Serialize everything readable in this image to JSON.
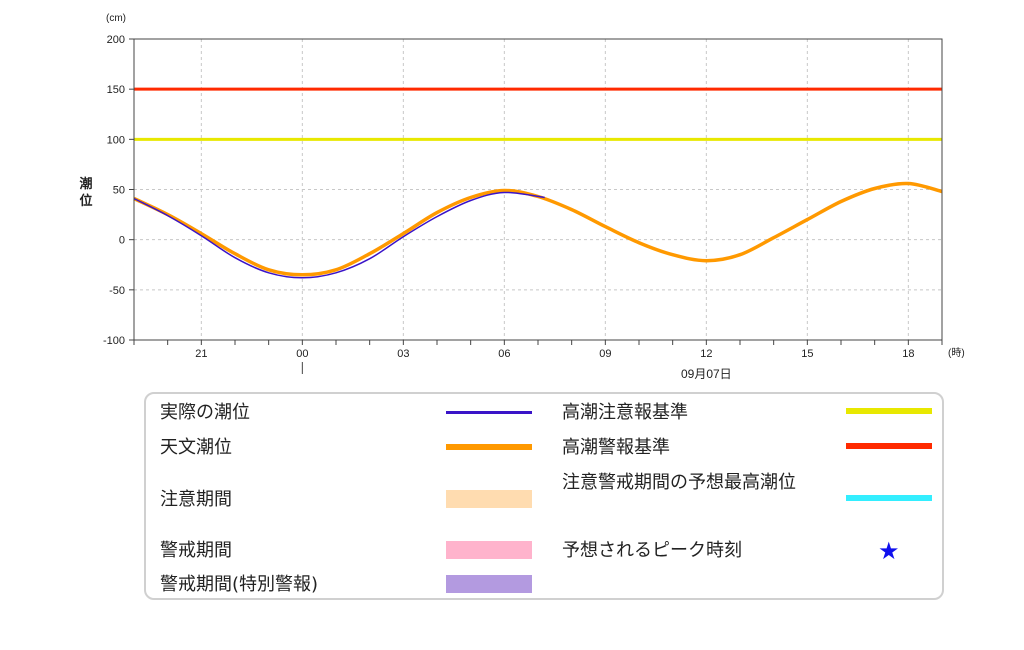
{
  "chart_data": {
    "type": "line",
    "y_unit": "(cm)",
    "x_unit": "(時)",
    "ylabel": "潮位",
    "ylim": [
      -100,
      200
    ],
    "yticks": [
      200,
      150,
      100,
      50,
      0,
      -50,
      -100
    ],
    "x_range_hours": [
      -5.0,
      19.0
    ],
    "x_tick_labels": [
      {
        "h": -3,
        "label": "21"
      },
      {
        "h": 0,
        "label": "00"
      },
      {
        "h": 3,
        "label": "03"
      },
      {
        "h": 6,
        "label": "06"
      },
      {
        "h": 9,
        "label": "09"
      },
      {
        "h": 12,
        "label": "12"
      },
      {
        "h": 15,
        "label": "15"
      },
      {
        "h": 18,
        "label": "18"
      }
    ],
    "date_label": {
      "h": 12,
      "label": "09月07日"
    },
    "thresholds": [
      {
        "name": "高潮警報基準",
        "value": 150,
        "color": "#ff2a00"
      },
      {
        "name": "高潮注意報基準",
        "value": 100,
        "color": "#e8e800"
      }
    ],
    "series": [
      {
        "name": "天文潮位",
        "color": "#ff9900",
        "x": [
          -5,
          -4,
          -3,
          -2,
          -1,
          0,
          1,
          2,
          3,
          4,
          5,
          6,
          7,
          8,
          9,
          10,
          11,
          12,
          13,
          14,
          15,
          16,
          17,
          18,
          19
        ],
        "y": [
          41,
          25,
          6,
          -14,
          -30,
          -35,
          -30,
          -14,
          6,
          27,
          42,
          49,
          43,
          30,
          13,
          -3,
          -15,
          -21,
          -15,
          2,
          20,
          38,
          51,
          56,
          48
        ]
      },
      {
        "name": "実際の潮位",
        "color": "#3a14c8",
        "x": [
          -5,
          -4,
          -3,
          -2,
          -1,
          0,
          1,
          2,
          3,
          4,
          5,
          6,
          7.2
        ],
        "y": [
          41,
          24,
          4,
          -18,
          -33,
          -38,
          -33,
          -19,
          3,
          23,
          39,
          47,
          42
        ]
      }
    ]
  },
  "legend": {
    "actual_label": "実際の潮位",
    "actual_color": "#3a14c8",
    "astro_label": "天文潮位",
    "astro_color": "#ff9900",
    "caution_period_label": "注意期間",
    "caution_period_color": "#ffdcb0",
    "warning_period_label": "警戒期間",
    "warning_period_color": "#ffb3cc",
    "special_period_label": "警戒期間(特別警報)",
    "special_period_color": "#b39ae0",
    "caution_std_label": "高潮注意報基準",
    "caution_std_color": "#e8e800",
    "warning_std_label": "高潮警報基準",
    "warning_std_color": "#ff2a00",
    "forecast_max_label": "注意警戒期間の予想最高潮位",
    "forecast_max_color": "#33eeff",
    "peak_time_label": "予想されるピーク時刻",
    "peak_star": "★",
    "peak_star_color": "#1010ee"
  }
}
